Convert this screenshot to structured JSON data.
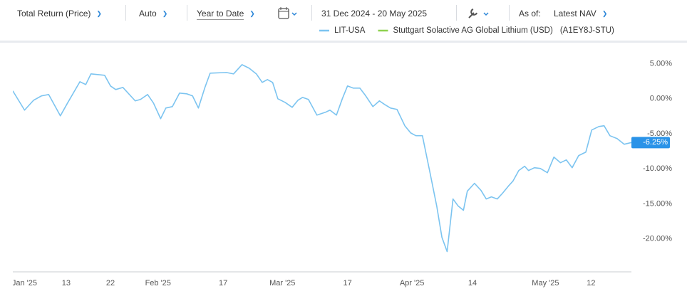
{
  "toolbar": {
    "return_type": "Total Return (Price)",
    "frequency": "Auto",
    "period": "Year to Date",
    "date_range": "31 Dec 2024 - 20 May 2025",
    "as_of_label": "As of:",
    "as_of": "Latest NAV"
  },
  "chart_data": {
    "type": "line",
    "legend_note": "(A1EY8J-STU)",
    "series": [
      {
        "name": "LIT-USA",
        "color": "#7cc4f0",
        "x": [
          0,
          1.8,
          3.2,
          4.4,
          5.5,
          7.3,
          8.4,
          10.3,
          11.2,
          12.0,
          14.1,
          15.0,
          15.8,
          16.9,
          18.8,
          19.6,
          20.7,
          21.6,
          22.7,
          23.5,
          24.5,
          25.6,
          26.7,
          27.6,
          28.5,
          29.5,
          30.3,
          32.8,
          33.9,
          35.2,
          36.3,
          37.4,
          38.3,
          39.1,
          39.9,
          40.7,
          41.8,
          42.9,
          43.8,
          44.5,
          45.4,
          46.7,
          48.0,
          48.7,
          49.7,
          50.6,
          51.4,
          52.3,
          53.3,
          54.2,
          55.3,
          56.3,
          57.1,
          58.0,
          59.0,
          60.2,
          61.1,
          61.9,
          62.9,
          64.0,
          65.1,
          65.9,
          66.7,
          67.6,
          68.4,
          69.2,
          69.8,
          70.9,
          71.9,
          72.7,
          73.5,
          74.4,
          75.2,
          76.1,
          76.8,
          77.7,
          78.6,
          79.2,
          80.1,
          81.0,
          82.1,
          83.1,
          84.1,
          85.0,
          85.9,
          86.9,
          88.0,
          88.9,
          90.0,
          90.8,
          91.7,
          92.8,
          93.9,
          95.0
        ],
        "values": [
          1.12,
          -1.62,
          -0.2,
          0.41,
          0.61,
          -2.43,
          -0.61,
          2.43,
          2.03,
          3.55,
          3.35,
          1.83,
          1.32,
          1.62,
          -0.3,
          -0.1,
          0.61,
          -0.61,
          -2.84,
          -1.32,
          -1.12,
          0.81,
          0.71,
          0.41,
          -1.32,
          1.62,
          3.65,
          3.75,
          3.55,
          4.87,
          4.36,
          3.55,
          2.33,
          2.74,
          2.33,
          0,
          -0.51,
          -1.22,
          -0.2,
          0.2,
          -0.1,
          -2.33,
          -1.93,
          -1.62,
          -2.33,
          0,
          1.83,
          1.52,
          1.52,
          0.41,
          -1.12,
          -0.3,
          -0.81,
          -1.32,
          -1.52,
          -3.85,
          -4.87,
          -5.27,
          -5.27,
          -10.24,
          -15.31,
          -19.78,
          -21.81,
          -14.3,
          -15.31,
          -15.92,
          -13.18,
          -12.07,
          -13.08,
          -14.3,
          -14.0,
          -14.3,
          -13.49,
          -12.47,
          -11.76,
          -10.24,
          -9.63,
          -10.24,
          -9.84,
          -9.94,
          -10.55,
          -8.32,
          -9.13,
          -8.72,
          -9.84,
          -8.11,
          -7.61,
          -4.46,
          -3.96,
          -3.85,
          -5.27,
          -5.68,
          -6.49,
          -6.25
        ],
        "value_labels": [
          null,
          null,
          null,
          null,
          null,
          null,
          null,
          null,
          null,
          null,
          null,
          null,
          null,
          null,
          null,
          null,
          null,
          null,
          null,
          null,
          null,
          null,
          null,
          null,
          null,
          null,
          null,
          null,
          null,
          null,
          null,
          null,
          null,
          null,
          null,
          null,
          null,
          null,
          null,
          null,
          null,
          null,
          null,
          null,
          null,
          null,
          null,
          null,
          null,
          null,
          null,
          null,
          null,
          null,
          null,
          null,
          null,
          null,
          null,
          null,
          null,
          null,
          null,
          null,
          null,
          null,
          null,
          null,
          null,
          null,
          null,
          null,
          null,
          null,
          null,
          null,
          null,
          null,
          null,
          null,
          null,
          null,
          null,
          null,
          null,
          null,
          null,
          null,
          null,
          null,
          null,
          null,
          null,
          "-6.25%"
        ]
      },
      {
        "name": "Stuttgart Solactive AG Global Lithium (USD)",
        "color": "#8fd14f"
      }
    ],
    "xlim": [
      0,
      95
    ],
    "xticks": [
      {
        "value": 1.8,
        "label": "Jan '25"
      },
      {
        "value": 8.2,
        "label": "13"
      },
      {
        "value": 15.0,
        "label": "22"
      },
      {
        "value": 22.3,
        "label": "Feb '25"
      },
      {
        "value": 32.3,
        "label": "17"
      },
      {
        "value": 41.4,
        "label": "Mar '25"
      },
      {
        "value": 51.4,
        "label": "17"
      },
      {
        "value": 61.3,
        "label": "Apr '25"
      },
      {
        "value": 70.6,
        "label": "14"
      },
      {
        "value": 81.8,
        "label": "May '25"
      },
      {
        "value": 88.8,
        "label": "12"
      }
    ],
    "ylim": [
      -24.7,
      7.8
    ],
    "yticks": [
      {
        "value": 5,
        "label": "5.00%"
      },
      {
        "value": 0,
        "label": "0.00%"
      },
      {
        "value": -5,
        "label": "-5.00%"
      },
      {
        "value": -10,
        "label": "-10.00%"
      },
      {
        "value": -15,
        "label": "-15.00%"
      },
      {
        "value": -20,
        "label": "-20.00%"
      }
    ],
    "grid": false
  }
}
